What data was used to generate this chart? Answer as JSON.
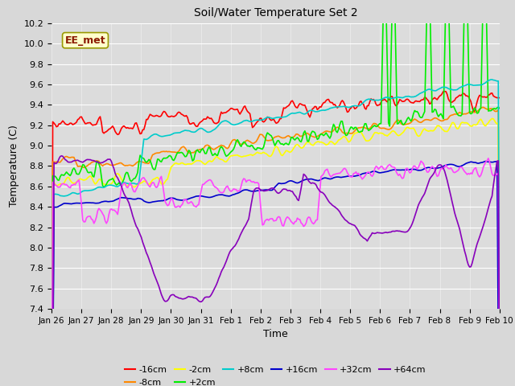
{
  "title": "Soil/Water Temperature Set 2",
  "xlabel": "Time",
  "ylabel": "Temperature (C)",
  "ylim": [
    7.4,
    10.2
  ],
  "yticks": [
    7.4,
    7.6,
    7.8,
    8.0,
    8.2,
    8.4,
    8.6,
    8.8,
    9.0,
    9.2,
    9.4,
    9.6,
    9.8,
    10.0,
    10.2
  ],
  "xtick_labels": [
    "Jan 26",
    "Jan 27",
    "Jan 28",
    "Jan 29",
    "Jan 30",
    "Jan 31",
    "Feb 1",
    "Feb 2",
    "Feb 3",
    "Feb 4",
    "Feb 5",
    "Feb 6",
    "Feb 7",
    "Feb 8",
    "Feb 9",
    "Feb 10"
  ],
  "annotation": "EE_met",
  "fig_bg": "#d8d8d8",
  "plot_bg": "#dcdcdc",
  "grid_color": "#ffffff",
  "series_colors": {
    "-16cm": "#ff0000",
    "-8cm": "#ff8800",
    "-2cm": "#ffff00",
    "+2cm": "#00ee00",
    "+8cm": "#00cccc",
    "+16cm": "#0000cc",
    "+32cm": "#ff44ff",
    "+64cm": "#8800bb"
  },
  "linewidth": 1.2
}
